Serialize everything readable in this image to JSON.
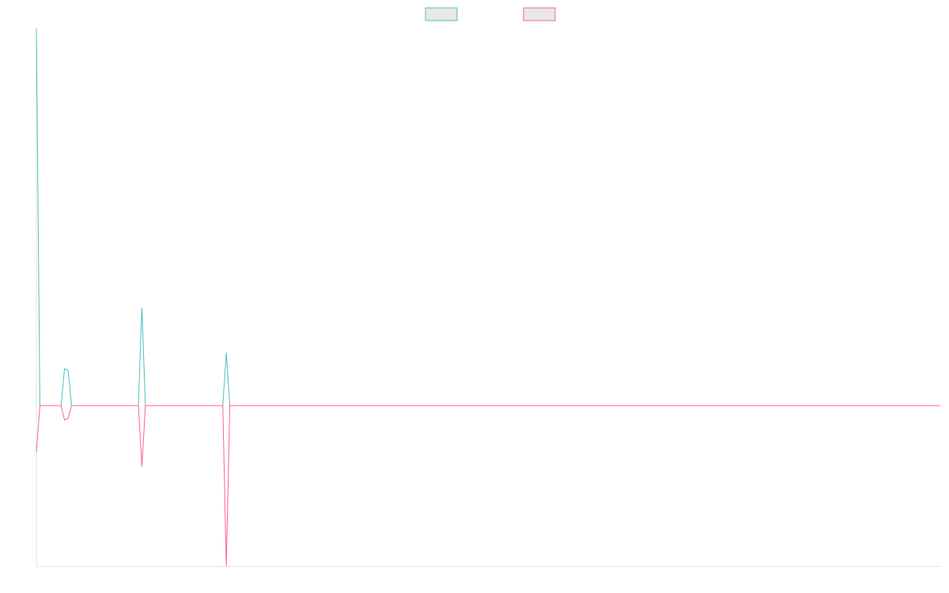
{
  "chart_data": {
    "type": "line",
    "title": "",
    "xlabel": "",
    "ylabel": "",
    "grid": false,
    "legend": {
      "placement": "top-center",
      "show_labels": false
    },
    "x_count": 258,
    "ylim": [
      -1.0,
      2.35
    ],
    "series": [
      {
        "color": "#4bc0c0",
        "legend_fill": "#e8e8e8",
        "spikes": [
          {
            "i": 0,
            "v": 2.35
          },
          {
            "i": 8,
            "v": 0.23
          },
          {
            "i": 9,
            "v": 0.22
          },
          {
            "i": 30,
            "v": 0.61
          },
          {
            "i": 54,
            "v": 0.33
          }
        ]
      },
      {
        "color": "#ff6384",
        "legend_fill": "#e8e8e8",
        "spikes": [
          {
            "i": 0,
            "v": -0.29
          },
          {
            "i": 8,
            "v": -0.09
          },
          {
            "i": 9,
            "v": -0.08
          },
          {
            "i": 30,
            "v": -0.38
          },
          {
            "i": 54,
            "v": -1.0
          }
        ]
      }
    ]
  }
}
